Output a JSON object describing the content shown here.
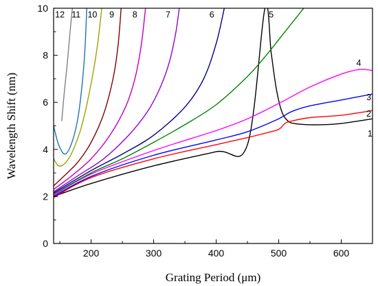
{
  "chart_data": {
    "type": "line",
    "xlabel": "Grating Period (μm)",
    "ylabel": "Wavelength Shift (nm)",
    "xlim": [
      140,
      650
    ],
    "ylim": [
      0,
      10
    ],
    "x_ticks": [
      200,
      300,
      400,
      500,
      600
    ],
    "y_ticks": [
      0,
      2,
      4,
      6,
      8,
      10
    ],
    "grid": false,
    "legend": "none",
    "series": [
      {
        "name": "1",
        "color": "#000000",
        "label_at": [
          646,
          4.55
        ],
        "x": [
          140,
          200,
          300,
          400,
          450,
          478,
          488,
          496,
          505,
          515,
          525,
          545,
          570,
          600,
          650
        ],
        "y": [
          2.0,
          2.55,
          3.3,
          3.9,
          4.2,
          10.0,
          8.1,
          6.6,
          5.6,
          5.2,
          5.1,
          5.05,
          5.05,
          5.1,
          5.3
        ]
      },
      {
        "name": "2",
        "color": "#ff0000",
        "label_at": [
          644,
          5.4
        ],
        "x": [
          140,
          200,
          300,
          400,
          450,
          480,
          500,
          510,
          520,
          550,
          600,
          650
        ],
        "y": [
          1.95,
          2.8,
          3.6,
          4.2,
          4.5,
          4.7,
          4.85,
          5.1,
          5.2,
          5.35,
          5.45,
          5.65
        ]
      },
      {
        "name": "3",
        "color": "#0000ff",
        "label_at": [
          644,
          6.1
        ],
        "x": [
          140,
          200,
          300,
          400,
          450,
          500,
          520,
          550,
          600,
          650
        ],
        "y": [
          2.0,
          2.85,
          3.75,
          4.4,
          4.75,
          5.3,
          5.6,
          5.85,
          6.1,
          6.35
        ]
      },
      {
        "name": "4",
        "color": "#ff00ff",
        "label_at": [
          628,
          7.55
        ],
        "x": [
          140,
          200,
          300,
          400,
          450,
          500,
          550,
          600,
          630,
          650
        ],
        "y": [
          2.05,
          2.95,
          3.95,
          4.8,
          5.3,
          5.95,
          6.65,
          7.2,
          7.4,
          7.35
        ]
      },
      {
        "name": "5",
        "color": "#008000",
        "label_at": [
          488,
          9.6
        ],
        "x": [
          140,
          200,
          250,
          300,
          350,
          400,
          450,
          480,
          510,
          540
        ],
        "y": [
          2.1,
          3.0,
          3.6,
          4.3,
          5.05,
          5.9,
          7.1,
          8.0,
          9.0,
          10.0
        ]
      },
      {
        "name": "6",
        "color": "#000080",
        "label_at": [
          393,
          9.6
        ],
        "x": [
          140,
          200,
          250,
          300,
          350,
          380,
          400,
          413
        ],
        "y": [
          2.15,
          3.1,
          3.8,
          4.6,
          5.8,
          7.0,
          8.5,
          10.0
        ]
      },
      {
        "name": "7",
        "color": "#9400d3",
        "label_at": [
          323,
          9.6
        ],
        "x": [
          140,
          180,
          220,
          260,
          290,
          310,
          325,
          335,
          341
        ],
        "y": [
          2.2,
          2.9,
          3.6,
          4.6,
          5.6,
          6.6,
          7.7,
          8.9,
          10.0
        ]
      },
      {
        "name": "8",
        "color": "#c000c0",
        "label_at": [
          270,
          9.6
        ],
        "x": [
          140,
          170,
          200,
          230,
          255,
          270,
          280,
          287
        ],
        "y": [
          2.3,
          2.9,
          3.6,
          4.6,
          5.8,
          7.0,
          8.4,
          10.0
        ]
      },
      {
        "name": "9",
        "color": "#800000",
        "label_at": [
          233,
          9.6
        ],
        "x": [
          140,
          160,
          180,
          200,
          220,
          235,
          243,
          248
        ],
        "y": [
          2.45,
          2.95,
          3.5,
          4.3,
          5.5,
          7.0,
          8.4,
          10.0
        ]
      },
      {
        "name": "10",
        "color": "#a0a000",
        "label_at": [
          202,
          9.6
        ],
        "x": [
          140,
          148,
          158,
          170,
          185,
          200,
          210,
          217
        ],
        "y": [
          3.6,
          3.3,
          3.4,
          3.9,
          5.0,
          6.8,
          8.4,
          10.0
        ]
      },
      {
        "name": "11",
        "color": "#1e73b8",
        "label_at": [
          176,
          9.6
        ],
        "x": [
          140,
          148,
          158,
          168,
          178,
          185,
          190,
          193
        ],
        "y": [
          5.0,
          4.2,
          3.8,
          4.2,
          5.2,
          6.6,
          8.2,
          10.0
        ]
      },
      {
        "name": "12",
        "color": "#808080",
        "label_at": [
          150,
          9.6
        ],
        "x": [
          153,
          157,
          162,
          166,
          170
        ],
        "y": [
          5.2,
          6.4,
          7.7,
          8.9,
          10.0
        ]
      }
    ]
  }
}
